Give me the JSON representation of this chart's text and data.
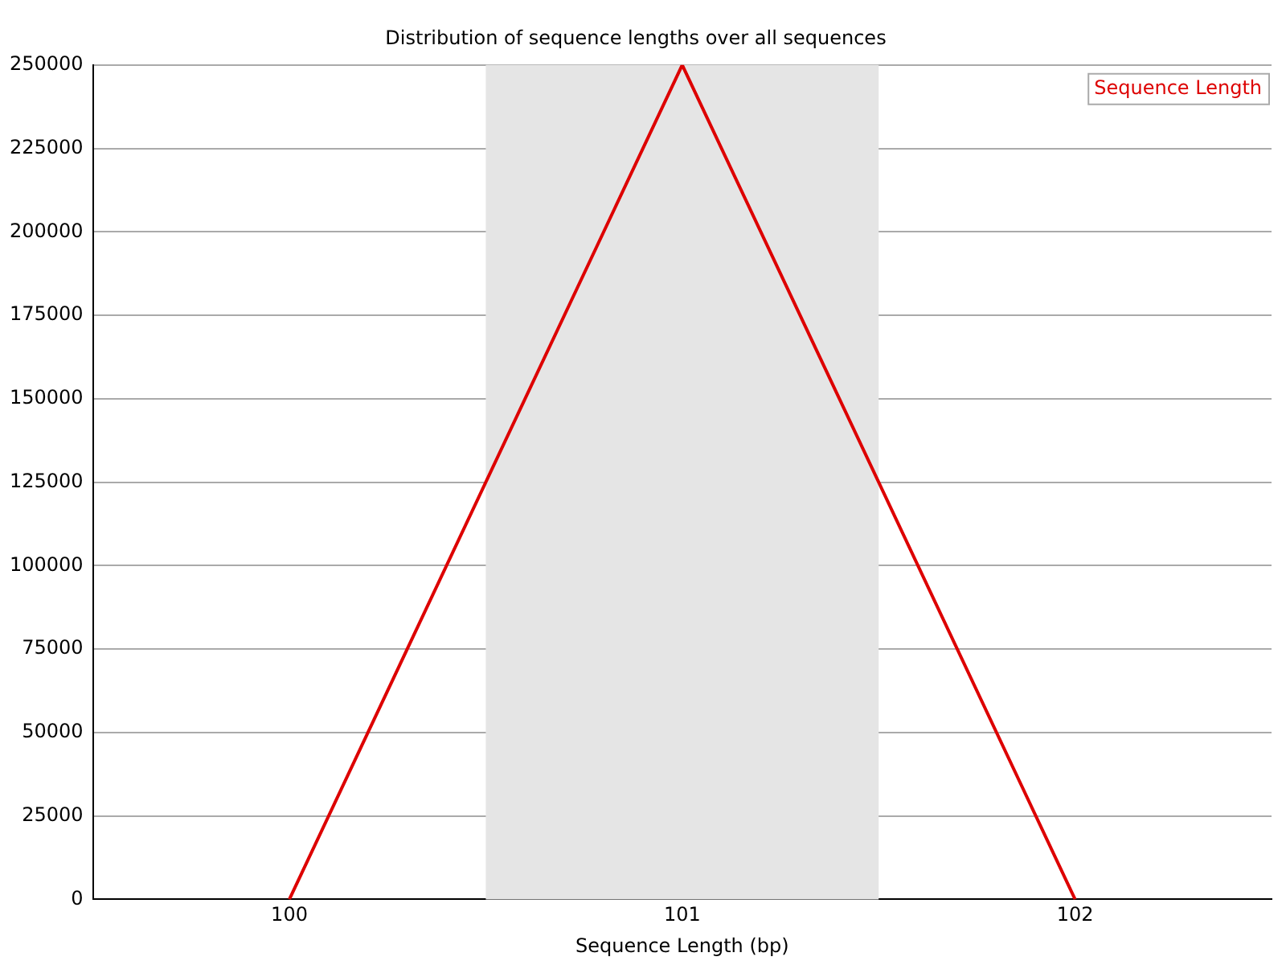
{
  "chart_data": {
    "type": "line",
    "title": "Distribution of sequence lengths over all sequences",
    "xlabel": "Sequence Length (bp)",
    "x": [
      100,
      101,
      102
    ],
    "series": [
      {
        "name": "Sequence Length",
        "color": "#dd0000",
        "values": [
          0,
          250000,
          0
        ]
      }
    ],
    "xlim": [
      99.5,
      102.5
    ],
    "xticks": [
      100,
      101,
      102
    ],
    "ylim": [
      0,
      250000
    ],
    "yticks": [
      0,
      25000,
      50000,
      75000,
      100000,
      125000,
      150000,
      175000,
      200000,
      225000,
      250000
    ],
    "bands": [
      {
        "axis": "x",
        "from": 100.5,
        "to": 101.5,
        "color": "#e5e5e5"
      }
    ],
    "grid": "y",
    "legend": "top right"
  }
}
